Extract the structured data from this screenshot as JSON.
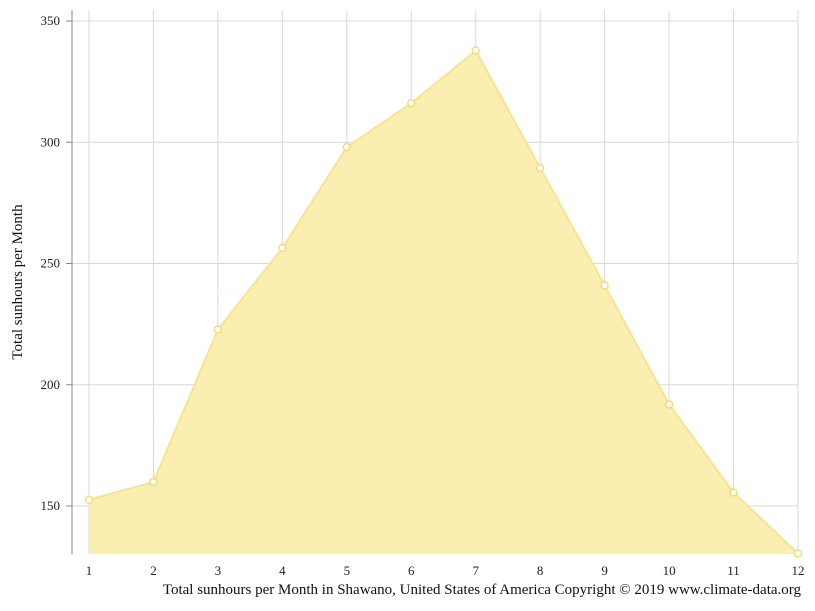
{
  "caption": "Total sunhours per Month in Shawano, United States of America Copyright © 2019 www.climate-data.org",
  "chart_data": {
    "type": "area",
    "title": "",
    "xlabel": "",
    "ylabel": "Total sunhours per Month",
    "x": [
      1,
      2,
      3,
      4,
      5,
      6,
      7,
      8,
      9,
      10,
      11,
      12
    ],
    "x_tick_labels": [
      "1",
      "2",
      "3",
      "4",
      "5",
      "6",
      "7",
      "8",
      "9",
      "10",
      "11",
      "12"
    ],
    "y_ticks": [
      150,
      200,
      250,
      300,
      350
    ],
    "y_tick_labels": [
      "150",
      "200",
      "250",
      "300",
      "350"
    ],
    "ylim": [
      130,
      355
    ],
    "grid": true,
    "legend": "none",
    "series": [
      {
        "values": [
          152.6,
          159.9,
          222.8,
          256.4,
          298.0,
          316.1,
          337.8,
          289.4,
          241.0,
          191.9,
          155.6,
          130.4
        ],
        "fill_color": "#faeeb0",
        "line_color": "#f7e48e",
        "marker_color": "#f4d76a"
      }
    ]
  }
}
